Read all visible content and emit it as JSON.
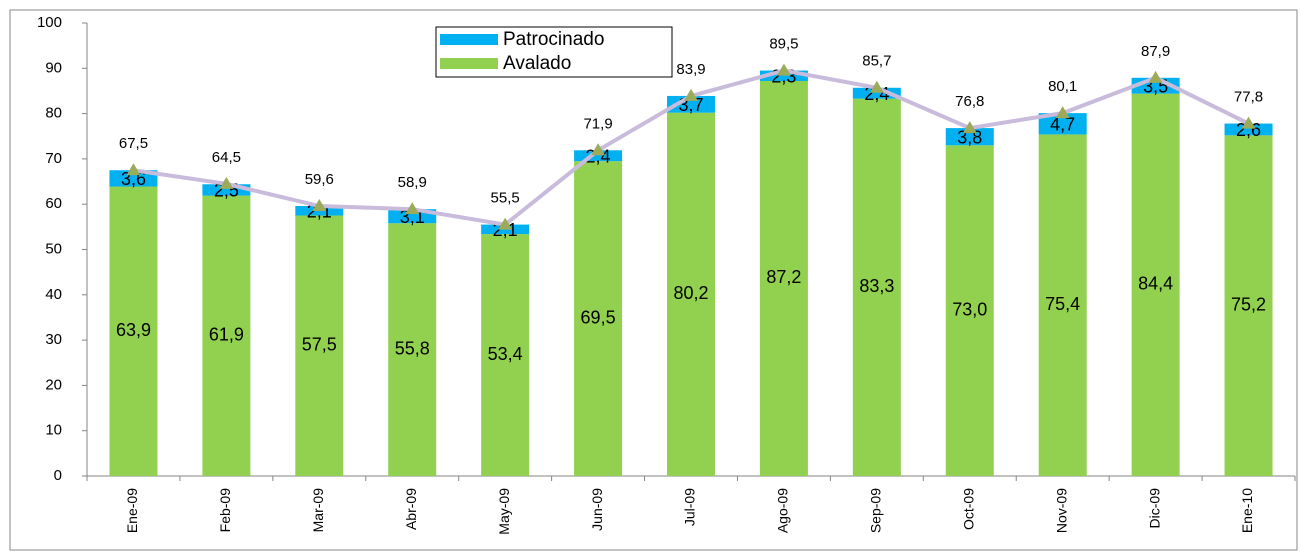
{
  "chart_data": {
    "type": "bar",
    "stacked": true,
    "categories": [
      "Ene-09",
      "Feb-09",
      "Mar-09",
      "Abr-09",
      "May-09",
      "Jun-09",
      "Jul-09",
      "Ago-09",
      "Sep-09",
      "Oct-09",
      "Nov-09",
      "Dic-09",
      "Ene-10"
    ],
    "series": [
      {
        "name": "Avalado",
        "color": "#92d050",
        "values": [
          63.9,
          61.9,
          57.5,
          55.8,
          53.4,
          69.5,
          80.2,
          87.2,
          83.3,
          73.0,
          75.4,
          84.4,
          75.2
        ],
        "value_labels": [
          "63,9",
          "61,9",
          "57,5",
          "55,8",
          "53,4",
          "69,5",
          "80,2",
          "87,2",
          "83,3",
          "73,0",
          "75,4",
          "84,4",
          "75,2"
        ]
      },
      {
        "name": "Patrocinado",
        "color": "#00b0f0",
        "values": [
          3.6,
          2.5,
          2.1,
          3.1,
          2.1,
          2.4,
          3.7,
          2.3,
          2.4,
          3.8,
          4.7,
          3.5,
          2.6
        ],
        "value_labels": [
          "3,6",
          "2,5",
          "2,1",
          "3,1",
          "2,1",
          "2,4",
          "3,7",
          "2,3",
          "2,4",
          "3,8",
          "4,7",
          "3,5",
          "2,6"
        ]
      }
    ],
    "line": {
      "color": "#c9bbdb",
      "marker_color": "#9bab5a",
      "values": [
        67.5,
        64.5,
        59.6,
        58.9,
        55.5,
        71.9,
        83.9,
        89.5,
        85.7,
        76.8,
        80.1,
        87.9,
        77.8
      ],
      "value_labels": [
        "67,5",
        "64,5",
        "59,6",
        "58,9",
        "55,5",
        "71,9",
        "83,9",
        "89,5",
        "85,7",
        "76,8",
        "80,1",
        "87,9",
        "77,8"
      ]
    },
    "ylim": [
      0,
      100
    ],
    "yticks": [
      0,
      10,
      20,
      30,
      40,
      50,
      60,
      70,
      80,
      90,
      100
    ],
    "grid": false,
    "legend": "top"
  }
}
